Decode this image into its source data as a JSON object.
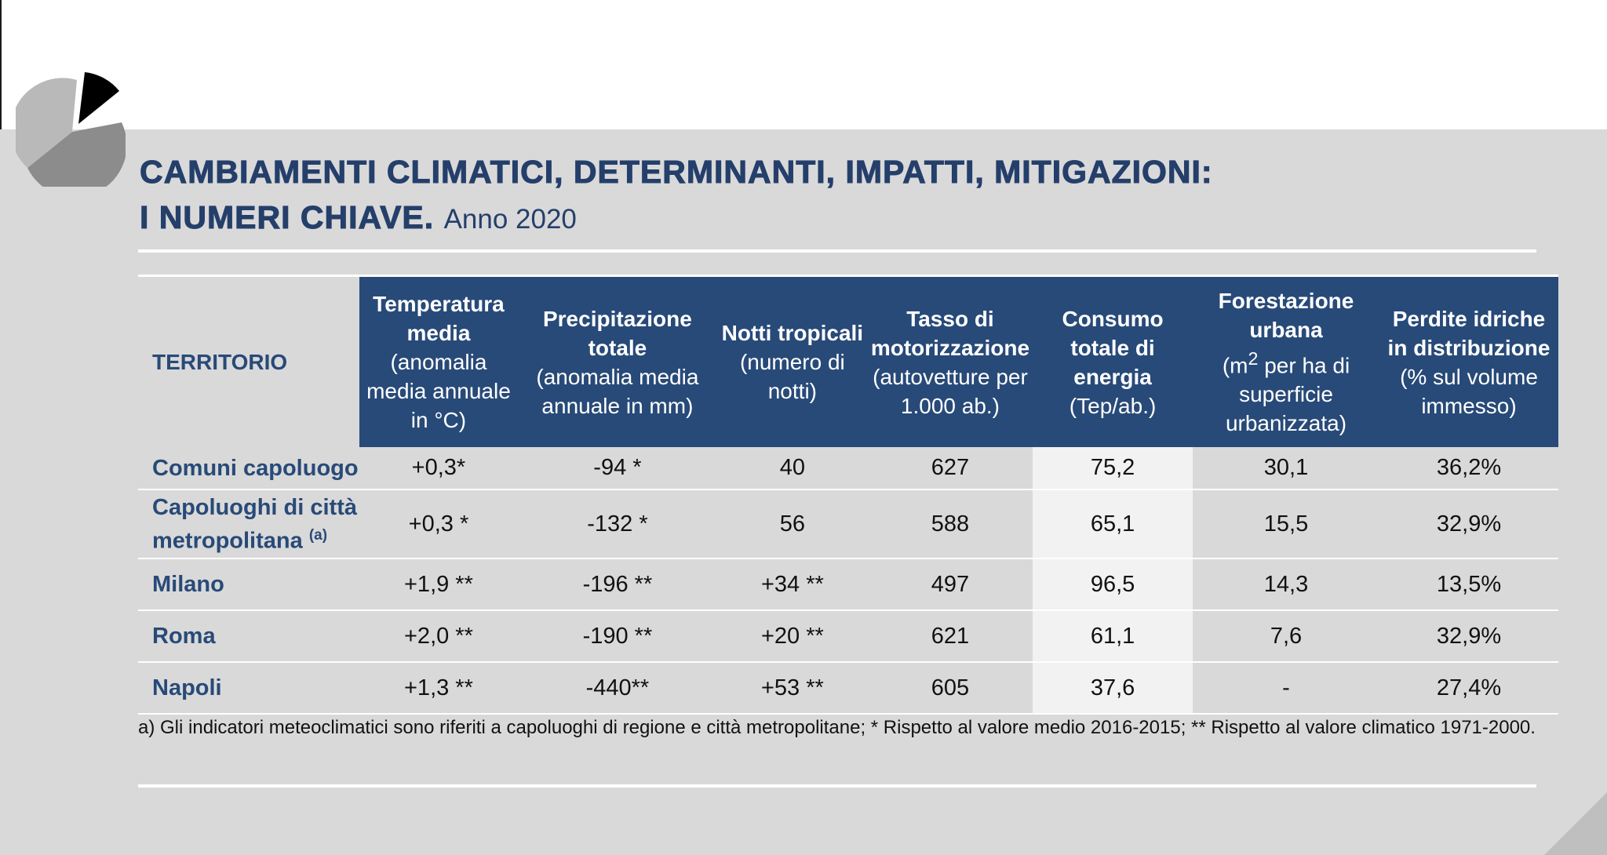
{
  "title": {
    "line1": "CAMBIAMENTI CLIMATICI, DETERMINANTI, IMPATTI, MITIGAZIONI:",
    "line2": "I NUMERI CHIAVE.",
    "year": "Anno 2020"
  },
  "table": {
    "territory_header": "TERRITORIO",
    "columns": [
      {
        "bold": "Temperatura media",
        "sub": "(anomalia media annuale in °C)"
      },
      {
        "bold": "Precipitazione totale",
        "sub": "(anomalia media annuale in mm)"
      },
      {
        "bold": "Notti tropicali",
        "sub": "(numero di notti)"
      },
      {
        "bold": "Tasso di motorizzazione",
        "sub": "(autovetture per 1.000 ab.)"
      },
      {
        "bold": "Consumo totale di energia",
        "sub": "(Tep/ab.)"
      },
      {
        "bold": "Forestazione urbana",
        "sub_pre": "(m",
        "sub_sup": "2",
        "sub_post": " per ha di superficie urbanizzata)"
      },
      {
        "bold": "Perdite idriche in distribuzione",
        "sub": "(% sul volume immesso)"
      }
    ],
    "rows": [
      {
        "label": "Comuni capoluogo",
        "values": [
          "+0,3*",
          "-94 *",
          "40",
          "627",
          "75,2",
          "30,1",
          "36,2%"
        ]
      },
      {
        "label": "Capoluoghi di città metropolitana",
        "label_note": "(a)",
        "values": [
          "+0,3 *",
          "-132 *",
          "56",
          "588",
          "65,1",
          "15,5",
          "32,9%"
        ]
      },
      {
        "label": "Milano",
        "values": [
          "+1,9 **",
          "-196 **",
          "+34 **",
          "497",
          "96,5",
          "14,3",
          "13,5%"
        ]
      },
      {
        "label": "Roma",
        "values": [
          "+2,0 **",
          "-190 **",
          "+20 **",
          "621",
          "61,1",
          "7,6",
          "32,9%"
        ]
      },
      {
        "label": "Napoli",
        "values": [
          "+1,3 **",
          "-440**",
          "+53 **",
          "605",
          "37,6",
          "-",
          "27,4%"
        ]
      }
    ]
  },
  "footnote": "a) Gli indicatori meteoclimatici sono riferiti a capoluoghi di regione e città metropolitane; * Rispetto al valore medio 2016-2015; ** Rispetto al valore climatico 1971-2000.",
  "colors": {
    "header_blue": "#284a78",
    "title_blue": "#253f6b",
    "panel_gray": "#d9d9d9",
    "highlight_col": "#f2f2f2"
  },
  "icons": {
    "logo": "pie-chart-logo-icon"
  }
}
